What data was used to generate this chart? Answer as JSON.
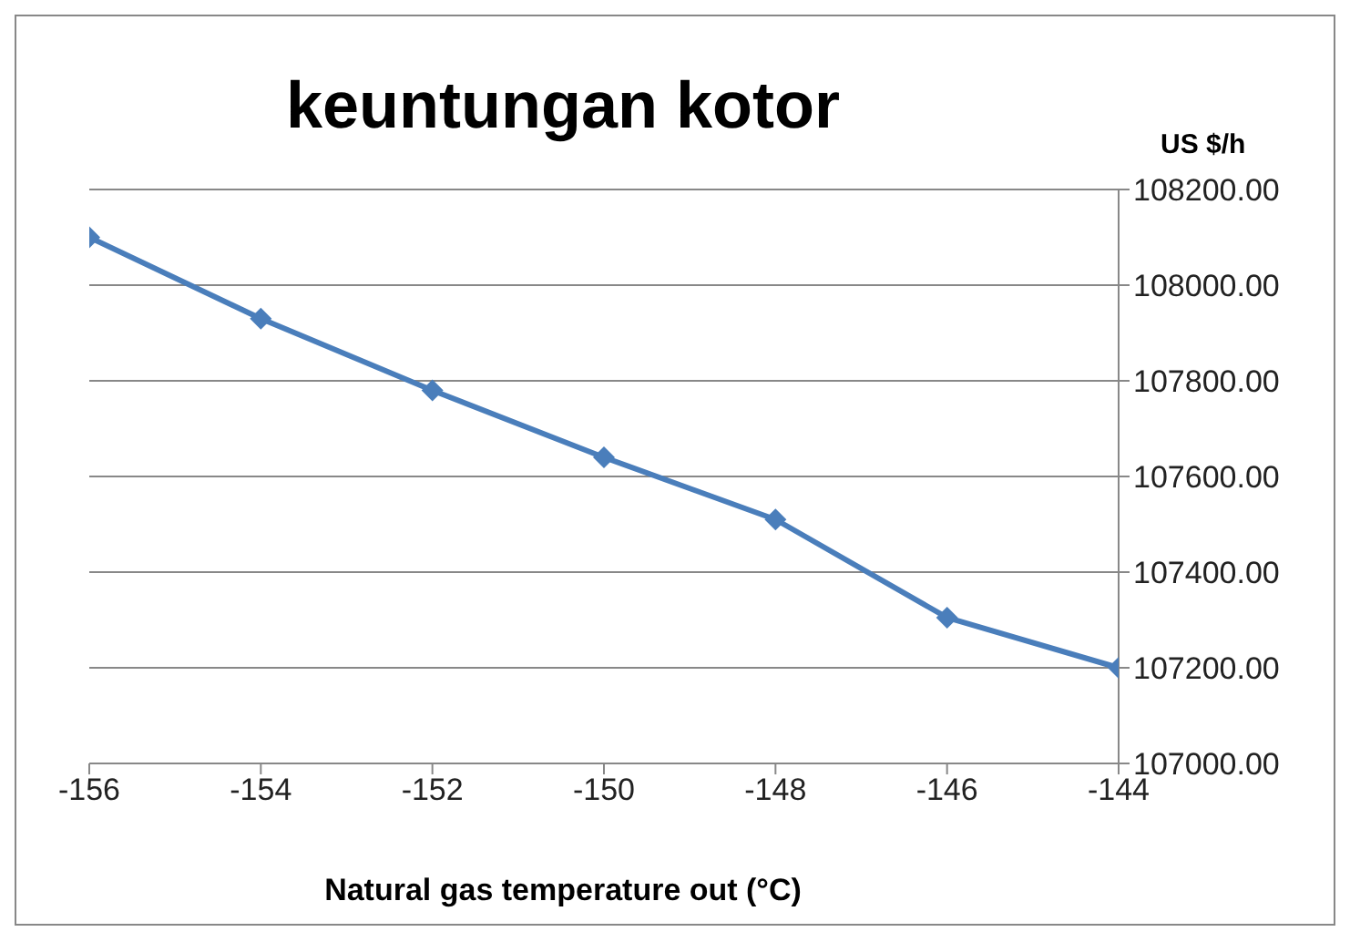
{
  "chart_data": {
    "type": "line",
    "title": "keuntungan kotor",
    "xlabel": "Natural gas temperature out (°C)",
    "ylabel": "US $/h",
    "x": [
      -156,
      -154,
      -152,
      -150,
      -148,
      -146,
      -144
    ],
    "series": [
      {
        "color": "#4a7ebb",
        "values": [
          108100,
          107930,
          107780,
          107640,
          107510,
          107305,
          107200
        ]
      }
    ],
    "xlim": [
      -156,
      -144
    ],
    "xticks": [
      -156,
      -154,
      -152,
      -150,
      -148,
      -146,
      -144
    ],
    "ylim": [
      107000,
      108200
    ],
    "yticks": [
      {
        "value": 107000,
        "label": "107000.00"
      },
      {
        "value": 107200,
        "label": "107200.00"
      },
      {
        "value": 107400,
        "label": "107400.00"
      },
      {
        "value": 107600,
        "label": "107600.00"
      },
      {
        "value": 107800,
        "label": "107800.00"
      },
      {
        "value": 108000,
        "label": "108000.00"
      },
      {
        "value": 108200,
        "label": "108200.00"
      }
    ],
    "grid": "y",
    "marker": "diamond",
    "line_style": "solid"
  }
}
